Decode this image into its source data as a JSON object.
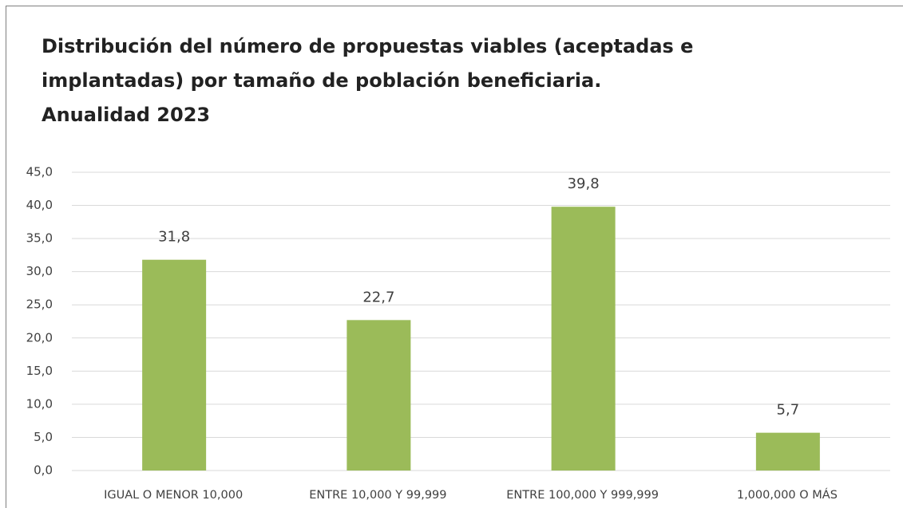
{
  "chart_data": {
    "type": "bar",
    "title": [
      "Distribución del número de propuestas viables (aceptadas e",
      "implantadas) por tamaño de población beneficiaria.",
      "Anualidad 2023"
    ],
    "categories": [
      "IGUAL O MENOR 10,000",
      "ENTRE 10,000 Y 99,999",
      "ENTRE 100,000 Y 999,999",
      "1,000,000 O MÁS"
    ],
    "values": [
      31.8,
      22.7,
      39.8,
      5.7
    ],
    "value_labels": [
      "31,8",
      "22,7",
      "39,8",
      "5,7"
    ],
    "color": "#9bbb59",
    "ylim": [
      0,
      45
    ],
    "yticks": [
      {
        "value": 0,
        "label": "0,0"
      },
      {
        "value": 5,
        "label": "5,0"
      },
      {
        "value": 10,
        "label": "10,0"
      },
      {
        "value": 15,
        "label": "15,0"
      },
      {
        "value": 20,
        "label": "20,0"
      },
      {
        "value": 25,
        "label": "25,0"
      },
      {
        "value": 30,
        "label": "30,0"
      },
      {
        "value": 35,
        "label": "35,0"
      },
      {
        "value": 40,
        "label": "40,0"
      },
      {
        "value": 45,
        "label": "45,0"
      }
    ],
    "grid": true
  }
}
